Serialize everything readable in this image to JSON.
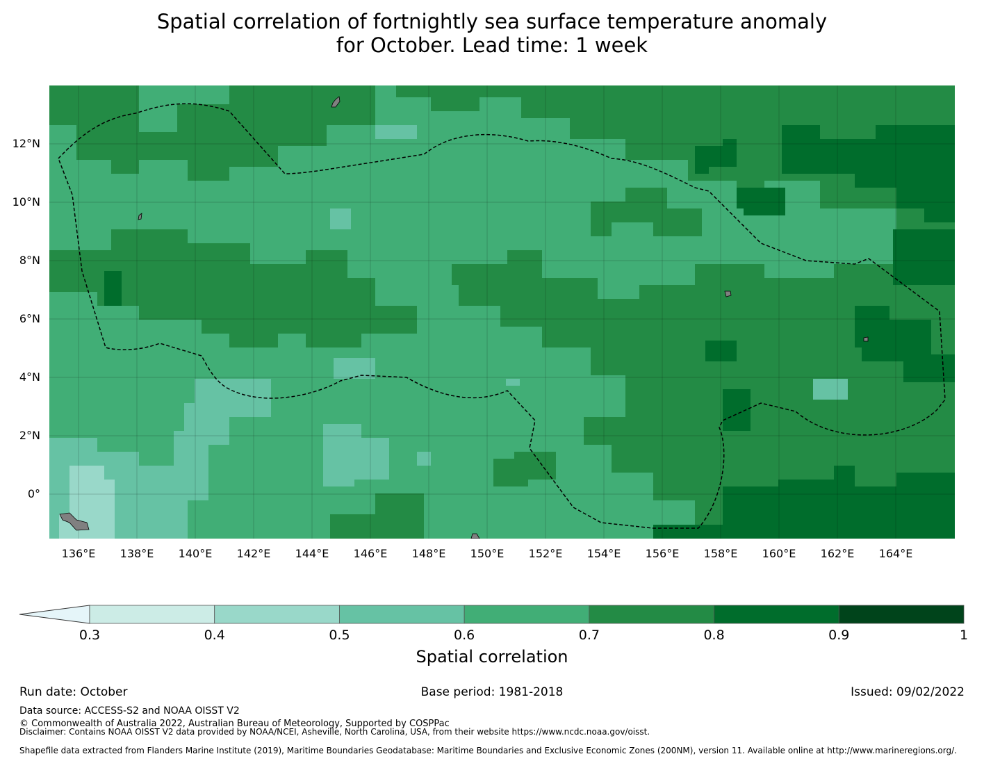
{
  "title_line1": "Spatial correlation of fortnightly sea surface temperature anomaly",
  "title_line2": "for October. Lead time: 1 week",
  "map": {
    "lat_labels": [
      "12°N",
      "10°N",
      "8°N",
      "6°N",
      "4°N",
      "2°N",
      "0°"
    ],
    "lon_labels": [
      "136°E",
      "138°E",
      "140°E",
      "142°E",
      "144°E",
      "146°E",
      "148°E",
      "150°E",
      "152°E",
      "154°E",
      "156°E",
      "158°E",
      "160°E",
      "162°E",
      "164°E"
    ],
    "extent": {
      "lon_min": 135,
      "lon_max": 166,
      "lat_min": -1.5,
      "lat_max": 14
    },
    "land_color": "#808080",
    "boundary_style": "dashed black line (EEZ boundary)"
  },
  "colorbar": {
    "title": "Spatial correlation",
    "ticks": [
      "0.3",
      "0.4",
      "0.5",
      "0.6",
      "0.7",
      "0.8",
      "0.9",
      "1"
    ],
    "bins": [
      {
        "from": 0.3,
        "to": 0.4,
        "color": "#ccece6"
      },
      {
        "from": 0.4,
        "to": 0.5,
        "color": "#99d8c9"
      },
      {
        "from": 0.5,
        "to": 0.6,
        "color": "#66c2a4"
      },
      {
        "from": 0.6,
        "to": 0.7,
        "color": "#41ae76"
      },
      {
        "from": 0.7,
        "to": 0.8,
        "color": "#238b45"
      },
      {
        "from": 0.8,
        "to": 0.9,
        "color": "#006d2c"
      },
      {
        "from": 0.9,
        "to": 1.0,
        "color": "#00441b"
      }
    ],
    "under_color": "#e5f5f9"
  },
  "footer": {
    "run_date": "Run date: October",
    "base_period": "Base period: 1981-2018",
    "issued": "Issued: 09/02/2022",
    "data_source": "Data source: ACCESS-S2 and NOAA OISST V2",
    "copyright": "© Commonwealth of Australia 2022, Australian Bureau of Meteorology, Supported by COSPPac",
    "disclaimer": "Disclaimer: Contains NOAA OISST V2 data provided by NOAA/NCEI, Asheville, North Carolina, USA, from their website https://www.ncdc.noaa.gov/oisst.",
    "shapefile": "Shapefile data extracted from Flanders Marine Institute (2019), Maritime Boundaries Geodatabase: Maritime Boundaries and Exclusive Economic Zones (200NM), version 11. Available online at http://www.marineregions.org/."
  }
}
